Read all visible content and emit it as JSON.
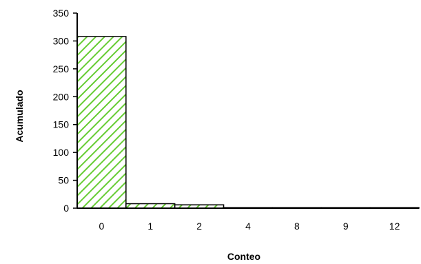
{
  "chart_data": {
    "type": "bar",
    "title": "",
    "xlabel": "Conteo",
    "ylabel": "Acumulado",
    "categories": [
      "0",
      "1",
      "2",
      "4",
      "8",
      "9",
      "12"
    ],
    "values": [
      308,
      8,
      6,
      1,
      1,
      1,
      1
    ],
    "ylim": [
      0,
      350
    ],
    "yticks": [
      "0",
      "50",
      "100",
      "150",
      "200",
      "250",
      "300",
      "350"
    ],
    "grid": false,
    "legend": "none",
    "bar_fill": "#ffffff",
    "bar_pattern_color": "#66cc33",
    "bar_stroke": "#000000",
    "bar_fill_pattern": "diagonal-hatch"
  }
}
